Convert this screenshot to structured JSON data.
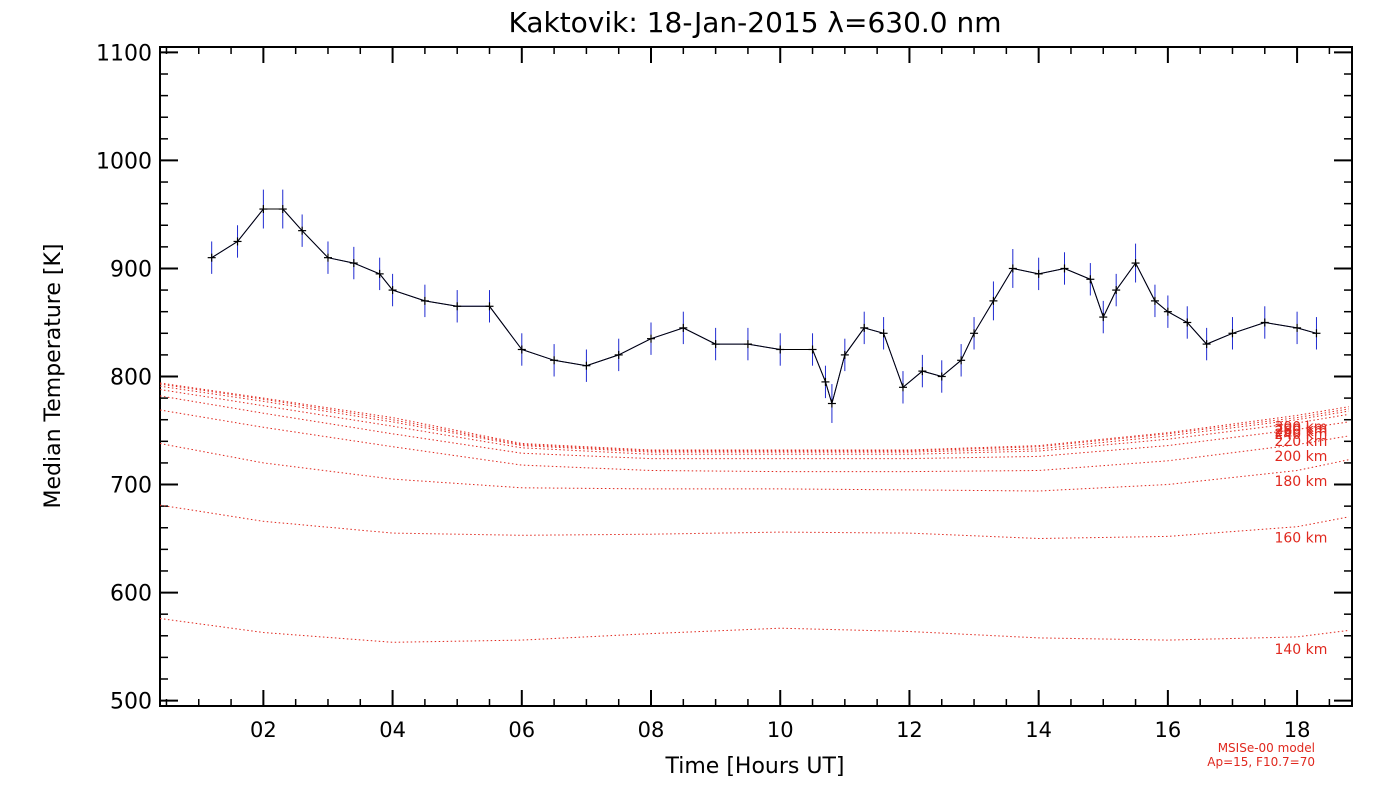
{
  "chart_data": {
    "type": "line",
    "title": "Kaktovik: 18-Jan-2015 λ=630.0 nm",
    "xlabel": "Time [Hours UT]",
    "ylabel": "Median Temperature [K]",
    "xlim": [
      0.4,
      18.85
    ],
    "ylim": [
      495,
      1105
    ],
    "x_ticks": [
      2,
      4,
      6,
      8,
      10,
      12,
      14,
      16,
      18
    ],
    "x_tick_labels": [
      "02",
      "04",
      "06",
      "08",
      "10",
      "12",
      "14",
      "16",
      "18"
    ],
    "y_ticks": [
      500,
      600,
      700,
      800,
      900,
      1000,
      1100
    ],
    "y_tick_labels": [
      "500",
      "600",
      "700",
      "800",
      "900",
      "1000",
      "1100"
    ],
    "grid": false,
    "model_note": [
      "MSISe-00 model",
      "Ap=15, F10.7=70"
    ],
    "colors": {
      "series": "#1f2ad1",
      "median": "#000000",
      "model": "#e0281e"
    },
    "series": [
      {
        "name": "",
        "style": "blue error bars with black median line and plus markers",
        "x": [
          1.2,
          1.6,
          2.0,
          2.3,
          2.6,
          3.0,
          3.4,
          3.8,
          4.0,
          4.5,
          5.0,
          5.5,
          6.0,
          6.5,
          7.0,
          7.5,
          8.0,
          8.5,
          9.0,
          9.5,
          10.0,
          10.5,
          10.7,
          10.8,
          11.0,
          11.3,
          11.6,
          11.9,
          12.2,
          12.5,
          12.8,
          13.0,
          13.3,
          13.6,
          14.0,
          14.4,
          14.8,
          15.0,
          15.2,
          15.5,
          15.8,
          16.0,
          16.3,
          16.6,
          17.0,
          17.5,
          18.0,
          18.3
        ],
        "y": [
          910,
          925,
          955,
          955,
          935,
          910,
          905,
          895,
          880,
          870,
          865,
          865,
          825,
          815,
          810,
          820,
          835,
          845,
          830,
          830,
          825,
          825,
          795,
          775,
          820,
          845,
          840,
          790,
          805,
          800,
          815,
          840,
          870,
          900,
          895,
          900,
          890,
          855,
          880,
          905,
          870,
          860,
          850,
          830,
          840,
          850,
          845,
          840
        ],
        "err": [
          15,
          15,
          18,
          18,
          15,
          15,
          15,
          15,
          15,
          15,
          15,
          15,
          15,
          15,
          15,
          15,
          15,
          15,
          15,
          15,
          15,
          15,
          15,
          18,
          15,
          15,
          15,
          15,
          15,
          15,
          15,
          15,
          18,
          18,
          15,
          15,
          15,
          15,
          15,
          18,
          15,
          15,
          15,
          15,
          15,
          15,
          15,
          15
        ]
      }
    ],
    "model_x": [
      0.4,
      2,
      4,
      6,
      8,
      10,
      12,
      14,
      16,
      18,
      18.8
    ],
    "model_curves": [
      {
        "label": "140 km",
        "y": [
          576,
          563,
          554,
          556,
          562,
          567,
          564,
          558,
          556,
          559,
          565
        ]
      },
      {
        "label": "160 km",
        "y": [
          681,
          666,
          655,
          653,
          654,
          656,
          655,
          650,
          652,
          661,
          670
        ]
      },
      {
        "label": "180 km",
        "y": [
          738,
          720,
          705,
          697,
          696,
          696,
          695,
          694,
          700,
          713,
          723
        ]
      },
      {
        "label": "200 km",
        "y": [
          769,
          753,
          735,
          718,
          713,
          712,
          712,
          713,
          722,
          737,
          745
        ]
      },
      {
        "label": "220 km",
        "y": [
          782,
          766,
          747,
          729,
          724,
          724,
          724,
          726,
          736,
          751,
          758
        ]
      },
      {
        "label": "240 km",
        "y": [
          788,
          773,
          754,
          734,
          728,
          728,
          728,
          731,
          742,
          757,
          765
        ]
      },
      {
        "label": "260 km",
        "y": [
          791,
          777,
          758,
          736,
          730,
          730,
          730,
          733,
          745,
          760,
          768
        ]
      },
      {
        "label": "280 km",
        "y": [
          793,
          779,
          760,
          737,
          731,
          731,
          731,
          735,
          747,
          762,
          770
        ]
      },
      {
        "label": "300 km",
        "y": [
          794,
          780,
          762,
          738,
          732,
          732,
          732,
          736,
          748,
          764,
          772
        ]
      }
    ]
  }
}
